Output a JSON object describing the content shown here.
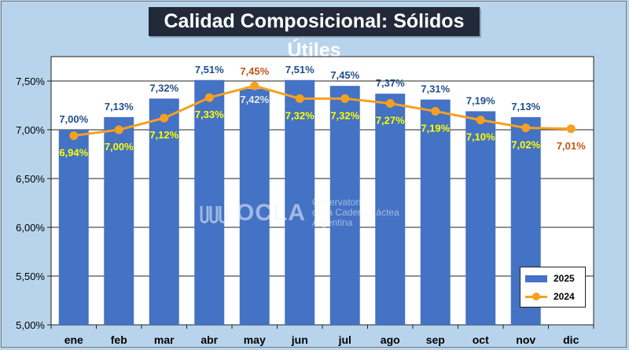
{
  "chart_data": {
    "type": "bar",
    "title": "Calidad Composicional: Sólidos Útiles",
    "categories": [
      "ene",
      "feb",
      "mar",
      "abr",
      "may",
      "jun",
      "jul",
      "ago",
      "sep",
      "oct",
      "nov",
      "dic"
    ],
    "ylim": [
      5.0,
      7.75
    ],
    "yticks": [
      "5,00%",
      "5,50%",
      "6,00%",
      "6,50%",
      "7,00%",
      "7,50%"
    ],
    "ytick_values": [
      5.0,
      5.5,
      6.0,
      6.5,
      7.0,
      7.5
    ],
    "grid": true,
    "legend_position": "bottom-right",
    "series": [
      {
        "name": "2025",
        "type": "bar",
        "color": "#4472c4",
        "values": [
          7.0,
          7.13,
          7.32,
          7.51,
          7.42,
          7.51,
          7.45,
          7.37,
          7.31,
          7.19,
          7.13,
          null
        ],
        "labels": [
          "7,00%",
          "7,13%",
          "7,32%",
          "7,51%",
          "7,42%",
          "7,51%",
          "7,45%",
          "7,37%",
          "7,31%",
          "7,19%",
          "7,13%",
          ""
        ]
      },
      {
        "name": "2024",
        "type": "line",
        "color": "#f5a022",
        "values": [
          6.94,
          7.0,
          7.12,
          7.33,
          7.45,
          7.32,
          7.32,
          7.27,
          7.19,
          7.1,
          7.02,
          7.01
        ],
        "labels": [
          "6,94%",
          "7,00%",
          "7,12%",
          "7,33%",
          "7,45%",
          "7,32%",
          "7,32%",
          "7,27%",
          "7,19%",
          "7,10%",
          "7,02%",
          "7,01%"
        ]
      }
    ]
  },
  "watermark": {
    "name": "OCLA",
    "line1": "Observatorio",
    "line2": "de la Cadena Láctea",
    "line3": "Argentina"
  }
}
